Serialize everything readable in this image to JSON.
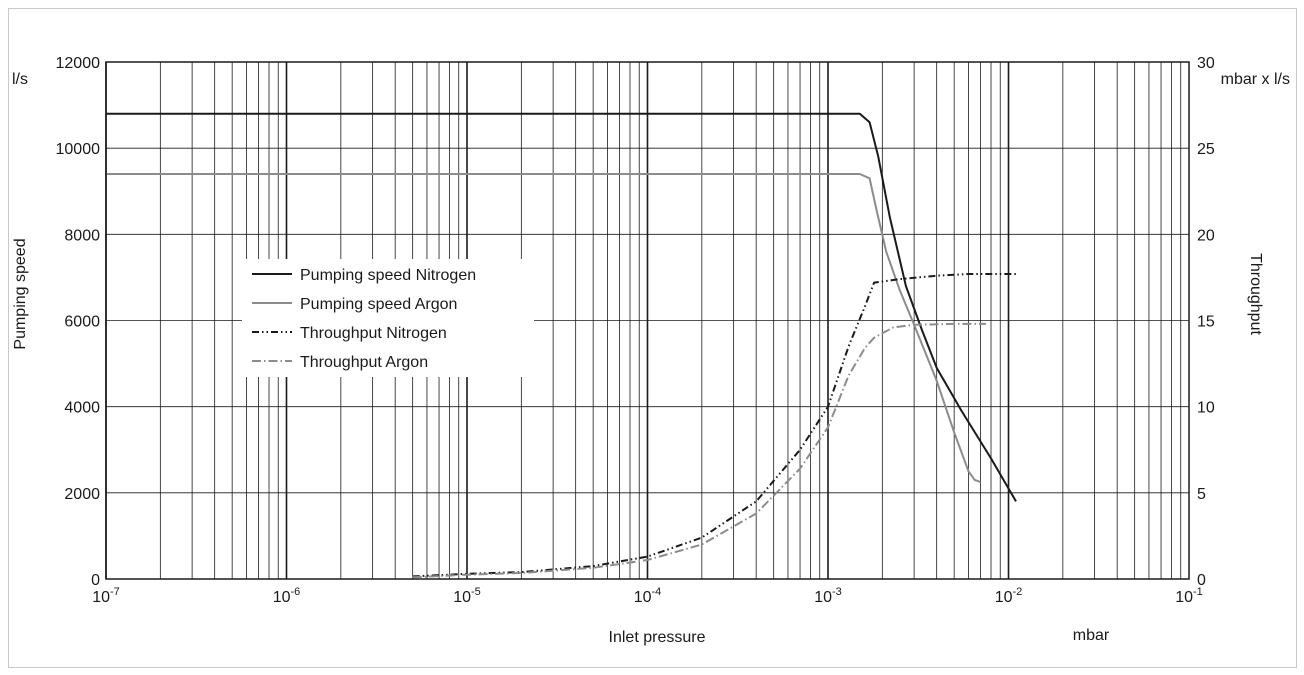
{
  "chart_data": {
    "type": "line",
    "xlabel": "Inlet pressure",
    "xunit": "mbar",
    "ylabel_left": "Pumping speed",
    "yunit_left": "l/s",
    "ylabel_right": "Throughput",
    "yunit_right": "mbar x l/s",
    "x_scale": "log",
    "xlim": [
      1e-07,
      0.1
    ],
    "x_ticks": [
      {
        "base": "10",
        "exp": "-7"
      },
      {
        "base": "10",
        "exp": "-6"
      },
      {
        "base": "10",
        "exp": "-5"
      },
      {
        "base": "10",
        "exp": "-4"
      },
      {
        "base": "10",
        "exp": "-3"
      },
      {
        "base": "10",
        "exp": "-2"
      },
      {
        "base": "10",
        "exp": "-1"
      }
    ],
    "ylim_left": [
      0,
      12000
    ],
    "y_ticks_left": [
      "0",
      "2000",
      "4000",
      "6000",
      "8000",
      "10000",
      "12000"
    ],
    "ylim_right": [
      0,
      30
    ],
    "y_ticks_right": [
      "0",
      "5",
      "10",
      "15",
      "20",
      "25",
      "30"
    ],
    "grid": true,
    "legend_position": "center-left",
    "series": [
      {
        "name": "Pumping speed Nitrogen",
        "axis": "left",
        "color": "#1a1a1a",
        "style": "solid",
        "points": [
          [
            1e-07,
            10800
          ],
          [
            0.0015,
            10800
          ],
          [
            0.0017,
            10600
          ],
          [
            0.0019,
            9800
          ],
          [
            0.0022,
            8400
          ],
          [
            0.0027,
            6800
          ],
          [
            0.0033,
            5800
          ],
          [
            0.004,
            4900
          ],
          [
            0.0055,
            3900
          ],
          [
            0.008,
            2800
          ],
          [
            0.011,
            1800
          ]
        ]
      },
      {
        "name": "Pumping speed Argon",
        "axis": "left",
        "color": "#8c8c8c",
        "style": "solid",
        "points": [
          [
            1e-07,
            9400
          ],
          [
            0.0015,
            9400
          ],
          [
            0.0017,
            9300
          ],
          [
            0.00185,
            8600
          ],
          [
            0.0021,
            7600
          ],
          [
            0.0025,
            6700
          ],
          [
            0.003,
            5900
          ],
          [
            0.004,
            4600
          ],
          [
            0.005,
            3400
          ],
          [
            0.006,
            2500
          ],
          [
            0.0065,
            2300
          ],
          [
            0.007,
            2250
          ]
        ]
      },
      {
        "name": "Throughput Nitrogen",
        "axis": "right",
        "color": "#1a1a1a",
        "style": "dash-dot-dot",
        "points": [
          [
            5e-06,
            0.15
          ],
          [
            1e-05,
            0.3
          ],
          [
            2e-05,
            0.4
          ],
          [
            5e-05,
            0.75
          ],
          [
            0.0001,
            1.3
          ],
          [
            0.0002,
            2.4
          ],
          [
            0.0004,
            4.5
          ],
          [
            0.0007,
            7.5
          ],
          [
            0.001,
            10
          ],
          [
            0.0013,
            13.5
          ],
          [
            0.0016,
            15.8
          ],
          [
            0.0018,
            17.2
          ],
          [
            0.0025,
            17.4
          ],
          [
            0.004,
            17.6
          ],
          [
            0.006,
            17.7
          ],
          [
            0.011,
            17.7
          ]
        ]
      },
      {
        "name": "Throughput Argon",
        "axis": "right",
        "color": "#8c8c8c",
        "style": "dash-dot",
        "points": [
          [
            5e-06,
            0.1
          ],
          [
            1e-05,
            0.25
          ],
          [
            2e-05,
            0.35
          ],
          [
            5e-05,
            0.65
          ],
          [
            0.0001,
            1.1
          ],
          [
            0.0002,
            2
          ],
          [
            0.0004,
            3.8
          ],
          [
            0.0007,
            6.4
          ],
          [
            0.001,
            8.8
          ],
          [
            0.0013,
            11.8
          ],
          [
            0.0016,
            13.4
          ],
          [
            0.0018,
            14
          ],
          [
            0.0023,
            14.6
          ],
          [
            0.003,
            14.75
          ],
          [
            0.005,
            14.8
          ],
          [
            0.0075,
            14.8
          ]
        ]
      }
    ]
  }
}
